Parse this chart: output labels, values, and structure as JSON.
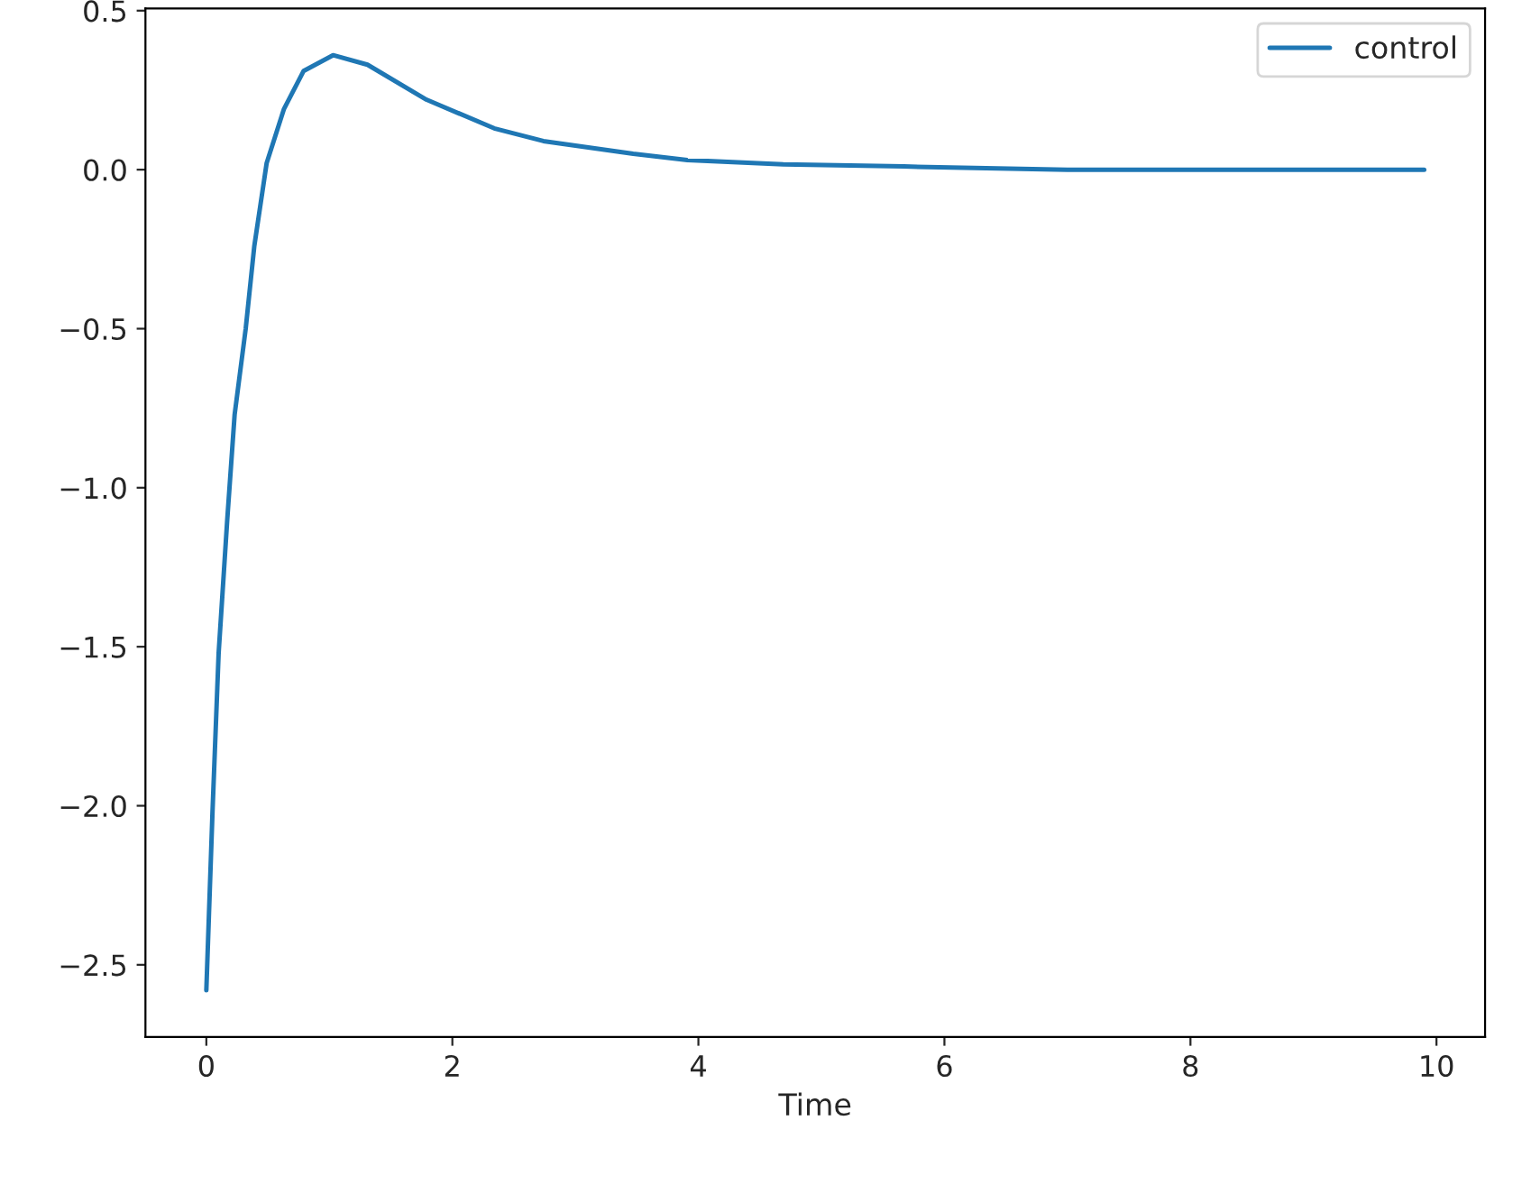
{
  "chart_data": {
    "type": "line",
    "xlabel": "Time",
    "x": [
      0,
      0.05,
      0.1,
      0.17,
      0.23,
      0.32,
      0.39,
      0.49,
      0.63,
      0.79,
      1.03,
      1.31,
      1.79,
      2.34,
      2.74,
      3.47,
      3.91,
      4.69,
      5.67,
      7,
      8.5,
      9.9
    ],
    "series": [
      {
        "name": "control",
        "color": "#1f77b4",
        "values": [
          -2.58,
          -2.02,
          -1.52,
          -1.1,
          -0.77,
          -0.5,
          -0.24,
          0.02,
          0.19,
          0.31,
          0.36,
          0.33,
          0.22,
          0.13,
          0.09,
          0.05,
          0.03,
          0.017,
          0.01,
          0.0,
          0.0,
          0.0
        ]
      }
    ],
    "xlim": [
      -0.495,
      10.395
    ],
    "ylim": [
      -2.727,
      0.507
    ],
    "xticks": [
      0,
      2,
      4,
      6,
      8,
      10
    ],
    "yticks": [
      {
        "value": -2.5,
        "label": "−2.5"
      },
      {
        "value": -2.0,
        "label": "−2.0"
      },
      {
        "value": -1.5,
        "label": "−1.5"
      },
      {
        "value": -1.0,
        "label": "−1.0"
      },
      {
        "value": -0.5,
        "label": "−0.5"
      },
      {
        "value": 0.0,
        "label": "0.0"
      },
      {
        "value": 0.5,
        "label": "0.5"
      }
    ],
    "legend": "top right",
    "grid": false,
    "marker": "none",
    "line_style": "solid"
  }
}
